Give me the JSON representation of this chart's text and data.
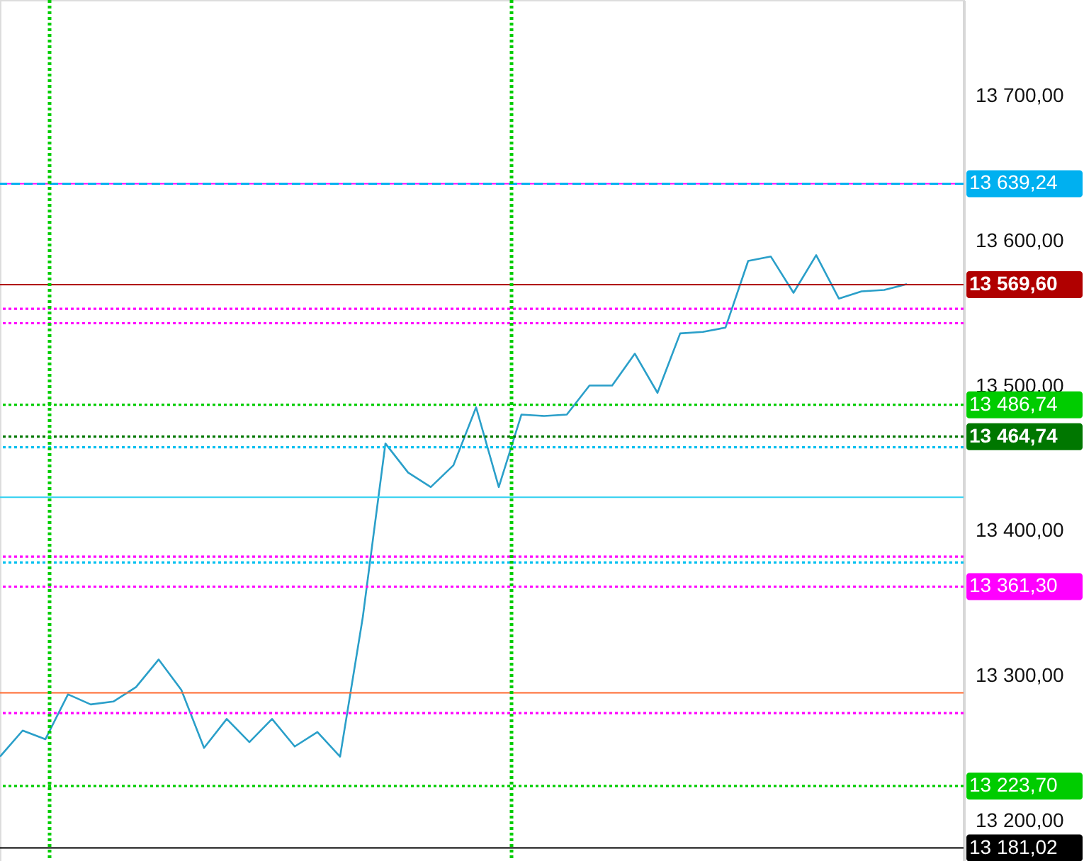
{
  "chart_data": {
    "type": "line",
    "categories": [
      null,
      null,
      null,
      null,
      null,
      null,
      null,
      null,
      null,
      null,
      null,
      null,
      null,
      null,
      null,
      null,
      null,
      null,
      null,
      null,
      null,
      null,
      null,
      null,
      null,
      null,
      null,
      null,
      null,
      null,
      null,
      null,
      null,
      null,
      null,
      null,
      null,
      null,
      null,
      null,
      null
    ],
    "series": [
      {
        "color": "#2a9fc9",
        "values": [
          13244,
          13262,
          13256,
          13287,
          13280,
          13282,
          13292,
          13311,
          13290,
          13250,
          13270,
          13254,
          13270,
          13251,
          13261,
          13244,
          13340,
          13460,
          13440,
          13430,
          13445,
          13485,
          13430,
          13480,
          13479,
          13480,
          13500,
          13500,
          13522,
          13495,
          13536,
          13537,
          13540,
          13586,
          13589,
          13564,
          13590,
          13560,
          13565,
          13566,
          13570
        ]
      }
    ],
    "ylim": [
      13172,
      13766
    ],
    "yticks": [
      {
        "value": 13200,
        "label": "13 200,00"
      },
      {
        "value": 13300,
        "label": "13 300,00"
      },
      {
        "value": 13400,
        "label": "13 400,00"
      },
      {
        "value": 13500,
        "label": "13 500,00"
      },
      {
        "value": 13600,
        "label": "13 600,00"
      },
      {
        "value": 13700,
        "label": "13 700,00"
      }
    ],
    "tick_labels": "y",
    "grid": false,
    "marker": "none",
    "line_style": "solid",
    "ref_lines": [
      {
        "axis": "y",
        "value": 13639.24,
        "color": "#ff00ff",
        "line_style": "solid"
      },
      {
        "axis": "y",
        "value": 13639.24,
        "label": "13 639,24",
        "color": "#00b0f0",
        "line_style": "dashed"
      },
      {
        "axis": "y",
        "value": 13569.6,
        "label": "13 569,60",
        "color": "#b00000",
        "line_style": "solid"
      },
      {
        "axis": "y",
        "value": 13553,
        "color": "#ff00ff",
        "line_style": "dotted"
      },
      {
        "axis": "y",
        "value": 13543,
        "color": "#ff00ff",
        "line_style": "dotted"
      },
      {
        "axis": "y",
        "value": 13486.74,
        "label": "13 486,74",
        "color": "#00cc00",
        "line_style": "dotted"
      },
      {
        "axis": "y",
        "value": 13464.74,
        "label": "13 464,74",
        "color": "#007700",
        "line_style": "dotted"
      },
      {
        "axis": "y",
        "value": 13457.5,
        "color": "#00c0f0",
        "line_style": "dotted"
      },
      {
        "axis": "y",
        "value": 13423,
        "color": "#30d0f0",
        "line_style": "solid"
      },
      {
        "axis": "y",
        "value": 13382,
        "color": "#ff00ff",
        "line_style": "dotted"
      },
      {
        "axis": "y",
        "value": 13378,
        "color": "#00c0f0",
        "line_style": "dotted"
      },
      {
        "axis": "y",
        "value": 13361.3,
        "label": "13 361,30",
        "color": "#ff00ff",
        "line_style": "dotted"
      },
      {
        "axis": "y",
        "value": 13288,
        "color": "#ff6a30",
        "line_style": "solid"
      },
      {
        "axis": "y",
        "value": 13274,
        "color": "#ff00ff",
        "line_style": "dotted"
      },
      {
        "axis": "y",
        "value": 13223.7,
        "label": "13 223,70",
        "color": "#00cc00",
        "line_style": "dotted"
      },
      {
        "axis": "y",
        "value": 13181.02,
        "label": "13 181,02",
        "color": "#000000",
        "line_style": "solid"
      }
    ]
  }
}
